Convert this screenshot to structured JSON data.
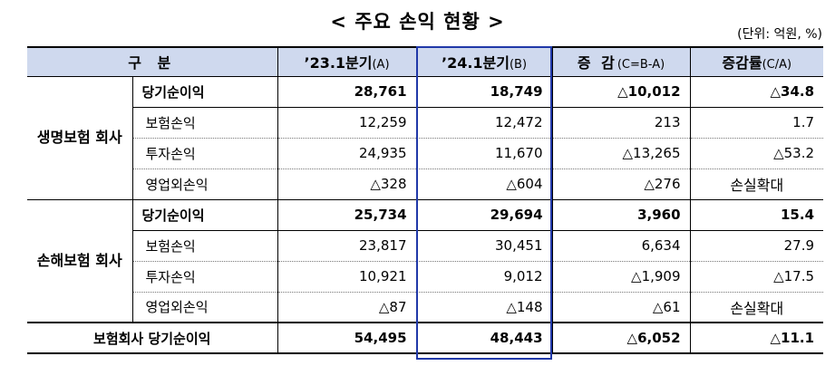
{
  "title": "< 주요 손익 현황 >",
  "unit": "(단위: 억원, %)",
  "headers": {
    "category": "구  분",
    "col1": "’23.1분기",
    "col1_suffix": "(A)",
    "col2": "’24.1분기",
    "col2_suffix": "(B)",
    "col3": "증 감",
    "col3_suffix": "(C=B-A)",
    "col4": "증감률",
    "col4_suffix": "(C/A)"
  },
  "life": {
    "label": "생명보험 회사",
    "rows": [
      {
        "name": "당기순이익",
        "a": "28,761",
        "b": "18,749",
        "c": "△10,012",
        "d": "△34.8"
      },
      {
        "name": "보험손익",
        "a": "12,259",
        "b": "12,472",
        "c": "213",
        "d": "1.7"
      },
      {
        "name": "투자손익",
        "a": "24,935",
        "b": "11,670",
        "c": "△13,265",
        "d": "△53.2"
      },
      {
        "name": "영업외손익",
        "a": "△328",
        "b": "△604",
        "c": "△276",
        "d": "손실확대"
      }
    ]
  },
  "nonlife": {
    "label": "손해보험 회사",
    "rows": [
      {
        "name": "당기순이익",
        "a": "25,734",
        "b": "29,694",
        "c": "3,960",
        "d": "15.4"
      },
      {
        "name": "보험손익",
        "a": "23,817",
        "b": "30,451",
        "c": "6,634",
        "d": "27.9"
      },
      {
        "name": "투자손익",
        "a": "10,921",
        "b": "9,012",
        "c": "△1,909",
        "d": "△17.5"
      },
      {
        "name": "영업외손익",
        "a": "△87",
        "b": "△148",
        "c": "△61",
        "d": "손실확대"
      }
    ]
  },
  "total": {
    "name": "보험회사 당기순이익",
    "a": "54,495",
    "b": "48,443",
    "c": "△6,052",
    "d": "△11.1"
  },
  "colors": {
    "header_bg": "#cfd9ee",
    "highlight_border": "#2038a8"
  }
}
